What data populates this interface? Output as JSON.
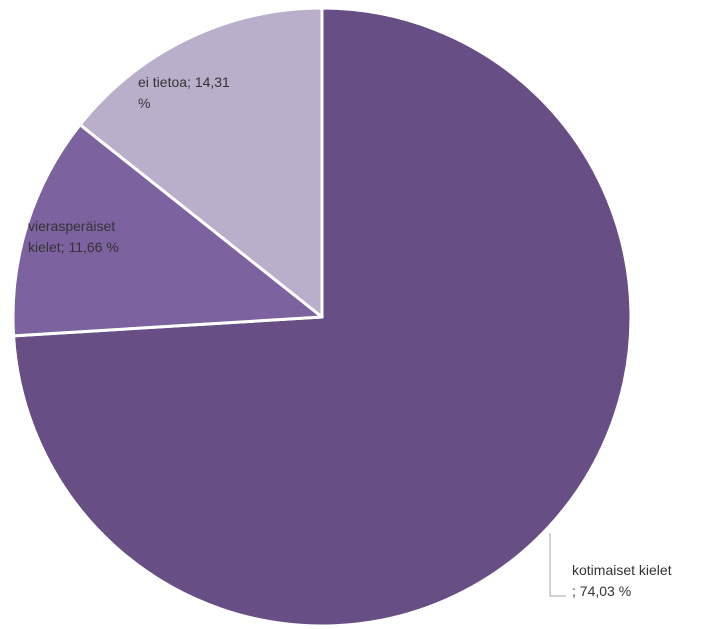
{
  "chart_data": {
    "type": "pie",
    "slices": [
      {
        "name": "kotimaiset kielet",
        "value": 74.03,
        "label_lines": [
          "kotimaiset kielet",
          "; 74,03 %"
        ],
        "color": "#674F86"
      },
      {
        "name": "vierasperäiset kielet",
        "value": 11.66,
        "label_lines": [
          "vierasperäiset",
          "kielet; 11,66 %"
        ],
        "color": "#7D62A0"
      },
      {
        "name": "ei tietoa",
        "value": 14.31,
        "label_lines": [
          "ei tietoa; 14,31",
          "%"
        ],
        "color": "#BAAFCB"
      }
    ],
    "legend": "none",
    "start": "12 o'clock",
    "direction": "clockwise"
  }
}
